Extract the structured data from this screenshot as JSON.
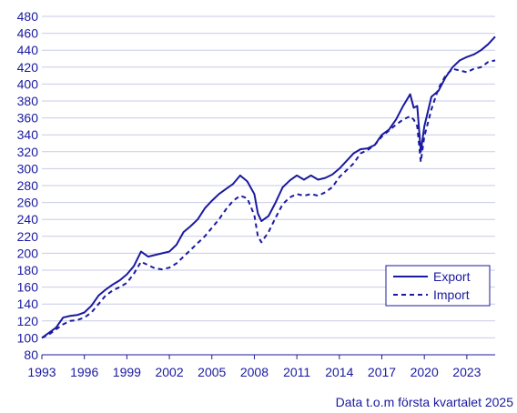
{
  "chart_data": {
    "type": "line",
    "title": "",
    "xlabel": "",
    "ylabel": "",
    "ylim": [
      80,
      480
    ],
    "xlim": [
      1993.0,
      2025.0
    ],
    "yticks": [
      "80",
      "100",
      "120",
      "140",
      "160",
      "180",
      "200",
      "220",
      "240",
      "260",
      "280",
      "300",
      "320",
      "340",
      "360",
      "380",
      "400",
      "420",
      "440",
      "460",
      "480"
    ],
    "xticks": [
      "1993",
      "1996",
      "1999",
      "2002",
      "2005",
      "2008",
      "2011",
      "2014",
      "2017",
      "2020",
      "2023"
    ],
    "grid": "horizontal",
    "legend_position": "bottom-right",
    "colors": {
      "axis": "#1a1aa0",
      "series": "#1a1aa0",
      "grid": "#c9cbe6"
    },
    "series": [
      {
        "name": "Export",
        "style": "solid",
        "points": [
          [
            1993.0,
            100
          ],
          [
            1993.5,
            106
          ],
          [
            1994.0,
            112
          ],
          [
            1994.5,
            124
          ],
          [
            1995.0,
            126
          ],
          [
            1995.5,
            127
          ],
          [
            1996.0,
            130
          ],
          [
            1996.5,
            138
          ],
          [
            1997.0,
            150
          ],
          [
            1997.5,
            157
          ],
          [
            1998.0,
            163
          ],
          [
            1998.5,
            168
          ],
          [
            1999.0,
            175
          ],
          [
            1999.5,
            185
          ],
          [
            2000.0,
            202
          ],
          [
            2000.5,
            196
          ],
          [
            2001.0,
            198
          ],
          [
            2001.5,
            200
          ],
          [
            2002.0,
            202
          ],
          [
            2002.5,
            210
          ],
          [
            2003.0,
            225
          ],
          [
            2003.5,
            232
          ],
          [
            2004.0,
            240
          ],
          [
            2004.5,
            253
          ],
          [
            2005.0,
            262
          ],
          [
            2005.5,
            270
          ],
          [
            2006.0,
            276
          ],
          [
            2006.5,
            282
          ],
          [
            2007.0,
            292
          ],
          [
            2007.5,
            285
          ],
          [
            2008.0,
            270
          ],
          [
            2008.25,
            247
          ],
          [
            2008.5,
            238
          ],
          [
            2009.0,
            244
          ],
          [
            2009.5,
            260
          ],
          [
            2010.0,
            278
          ],
          [
            2010.5,
            286
          ],
          [
            2011.0,
            292
          ],
          [
            2011.5,
            287
          ],
          [
            2012.0,
            292
          ],
          [
            2012.5,
            287
          ],
          [
            2013.0,
            289
          ],
          [
            2013.5,
            293
          ],
          [
            2014.0,
            300
          ],
          [
            2014.5,
            309
          ],
          [
            2015.0,
            318
          ],
          [
            2015.5,
            323
          ],
          [
            2016.0,
            324
          ],
          [
            2016.5,
            328
          ],
          [
            2017.0,
            340
          ],
          [
            2017.5,
            346
          ],
          [
            2018.0,
            358
          ],
          [
            2018.5,
            374
          ],
          [
            2019.0,
            388
          ],
          [
            2019.25,
            372
          ],
          [
            2019.5,
            374
          ],
          [
            2019.75,
            320
          ],
          [
            2020.0,
            350
          ],
          [
            2020.5,
            385
          ],
          [
            2021.0,
            392
          ],
          [
            2021.5,
            408
          ],
          [
            2022.0,
            420
          ],
          [
            2022.5,
            428
          ],
          [
            2023.0,
            432
          ],
          [
            2023.5,
            435
          ],
          [
            2024.0,
            440
          ],
          [
            2024.5,
            447
          ],
          [
            2025.0,
            456
          ]
        ]
      },
      {
        "name": "Import",
        "style": "dashed",
        "points": [
          [
            1993.0,
            100
          ],
          [
            1993.5,
            104
          ],
          [
            1994.0,
            110
          ],
          [
            1994.5,
            116
          ],
          [
            1995.0,
            120
          ],
          [
            1995.5,
            121
          ],
          [
            1996.0,
            124
          ],
          [
            1996.5,
            130
          ],
          [
            1997.0,
            140
          ],
          [
            1997.5,
            150
          ],
          [
            1998.0,
            156
          ],
          [
            1998.5,
            160
          ],
          [
            1999.0,
            165
          ],
          [
            1999.5,
            176
          ],
          [
            2000.0,
            190
          ],
          [
            2000.5,
            186
          ],
          [
            2001.0,
            182
          ],
          [
            2001.5,
            181
          ],
          [
            2002.0,
            183
          ],
          [
            2002.5,
            188
          ],
          [
            2003.0,
            196
          ],
          [
            2003.5,
            204
          ],
          [
            2004.0,
            212
          ],
          [
            2004.5,
            220
          ],
          [
            2005.0,
            230
          ],
          [
            2005.5,
            240
          ],
          [
            2006.0,
            252
          ],
          [
            2006.5,
            262
          ],
          [
            2007.0,
            268
          ],
          [
            2007.5,
            265
          ],
          [
            2008.0,
            245
          ],
          [
            2008.25,
            220
          ],
          [
            2008.5,
            213
          ],
          [
            2009.0,
            225
          ],
          [
            2009.5,
            242
          ],
          [
            2010.0,
            258
          ],
          [
            2010.5,
            266
          ],
          [
            2011.0,
            270
          ],
          [
            2011.5,
            268
          ],
          [
            2012.0,
            270
          ],
          [
            2012.5,
            268
          ],
          [
            2013.0,
            272
          ],
          [
            2013.5,
            278
          ],
          [
            2014.0,
            290
          ],
          [
            2014.5,
            298
          ],
          [
            2015.0,
            306
          ],
          [
            2015.5,
            318
          ],
          [
            2016.0,
            322
          ],
          [
            2016.5,
            328
          ],
          [
            2017.0,
            338
          ],
          [
            2017.5,
            345
          ],
          [
            2018.0,
            352
          ],
          [
            2018.5,
            358
          ],
          [
            2019.0,
            362
          ],
          [
            2019.25,
            358
          ],
          [
            2019.5,
            350
          ],
          [
            2019.75,
            308
          ],
          [
            2020.0,
            338
          ],
          [
            2020.5,
            370
          ],
          [
            2021.0,
            395
          ],
          [
            2021.5,
            410
          ],
          [
            2022.0,
            418
          ],
          [
            2022.5,
            416
          ],
          [
            2023.0,
            414
          ],
          [
            2023.5,
            418
          ],
          [
            2024.0,
            420
          ],
          [
            2024.5,
            426
          ],
          [
            2025.0,
            428
          ]
        ]
      }
    ]
  },
  "footer": {
    "source_note": "Data t.o.m första kvartalet 2025"
  }
}
